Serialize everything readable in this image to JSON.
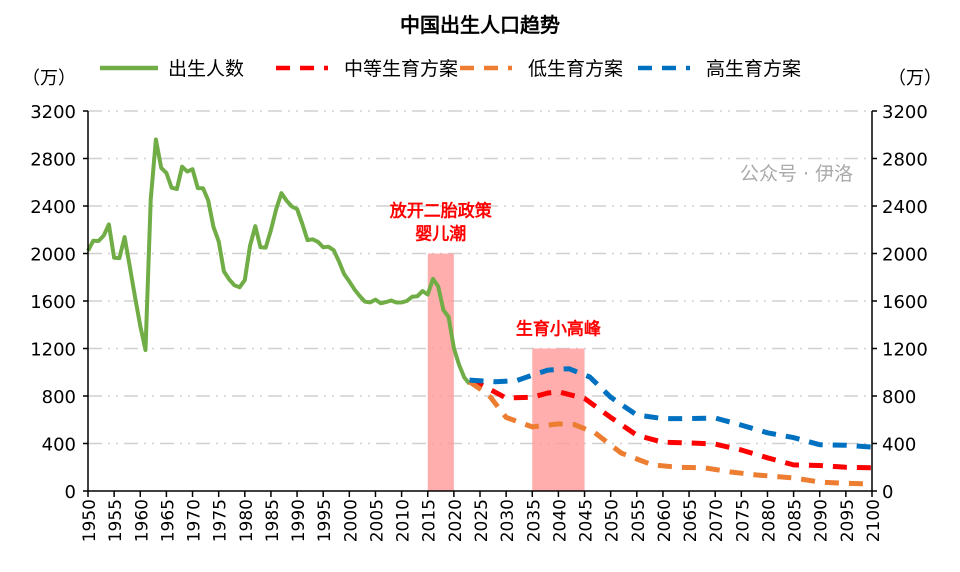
{
  "chart_data": {
    "type": "line",
    "title": "中国出生人口趋势",
    "ylabel_left": "（万）",
    "ylabel_right": "（万）",
    "ylim": [
      0,
      3200
    ],
    "yticks": [
      0,
      400,
      800,
      1200,
      1600,
      2000,
      2400,
      2800,
      3200
    ],
    "xlim": [
      1950,
      2100
    ],
    "xticks": [
      1950,
      1955,
      1960,
      1965,
      1970,
      1975,
      1980,
      1985,
      1990,
      1995,
      2000,
      2005,
      2010,
      2015,
      2020,
      2025,
      2030,
      2035,
      2040,
      2045,
      2050,
      2055,
      2060,
      2065,
      2070,
      2075,
      2080,
      2085,
      2090,
      2095,
      2100
    ],
    "grid": true,
    "legend_position": "top",
    "series": [
      {
        "name": "出生人数",
        "style": "solid",
        "color": "#70ad47",
        "x": [
          1950,
          1951,
          1952,
          1953,
          1954,
          1955,
          1956,
          1957,
          1958,
          1959,
          1960,
          1961,
          1962,
          1963,
          1964,
          1965,
          1966,
          1967,
          1968,
          1969,
          1970,
          1971,
          1972,
          1973,
          1974,
          1975,
          1976,
          1977,
          1978,
          1979,
          1980,
          1981,
          1982,
          1983,
          1984,
          1985,
          1986,
          1987,
          1988,
          1989,
          1990,
          1991,
          1992,
          1993,
          1994,
          1995,
          1996,
          1997,
          1998,
          1999,
          2000,
          2001,
          2002,
          2003,
          2004,
          2005,
          2006,
          2007,
          2008,
          2009,
          2010,
          2011,
          2012,
          2013,
          2014,
          2015,
          2016,
          2017,
          2018,
          2019,
          2020,
          2021,
          2022,
          2023
        ],
        "y": [
          2023,
          2107,
          2105,
          2151,
          2245,
          1965,
          1961,
          2138,
          1889,
          1635,
          1389,
          1187,
          2451,
          2960,
          2721,
          2679,
          2554,
          2543,
          2731,
          2690,
          2710,
          2551,
          2550,
          2447,
          2226,
          2102,
          1849,
          1783,
          1733,
          1715,
          1776,
          2064,
          2230,
          2052,
          2050,
          2196,
          2374,
          2508,
          2445,
          2396,
          2374,
          2250,
          2113,
          2120,
          2098,
          2052,
          2057,
          2028,
          1934,
          1827,
          1765,
          1696,
          1641,
          1594,
          1588,
          1612,
          1581,
          1591,
          1604,
          1587,
          1588,
          1600,
          1635,
          1640,
          1683,
          1655,
          1786,
          1723,
          1523,
          1465,
          1202,
          1062,
          956,
          902
        ]
      },
      {
        "name": "中等生育方案",
        "style": "dashed",
        "color": "#ff0000",
        "x": [
          2023,
          2025,
          2030,
          2035,
          2038,
          2040,
          2045,
          2050,
          2055,
          2060,
          2065,
          2070,
          2075,
          2080,
          2085,
          2090,
          2095,
          2100
        ],
        "y": [
          920,
          900,
          783,
          790,
          825,
          835,
          780,
          620,
          470,
          410,
          405,
          395,
          345,
          280,
          220,
          215,
          200,
          195
        ]
      },
      {
        "name": "低生育方案",
        "style": "dashed",
        "color": "#ed7d31",
        "x": [
          2023,
          2025,
          2027,
          2030,
          2035,
          2040,
          2043,
          2047,
          2052,
          2058,
          2063,
          2068,
          2073,
          2078,
          2085,
          2090,
          2095,
          2100
        ],
        "y": [
          920,
          860,
          790,
          620,
          540,
          565,
          560,
          490,
          320,
          220,
          200,
          195,
          160,
          135,
          110,
          75,
          65,
          60
        ]
      },
      {
        "name": "高生育方案",
        "style": "dashed",
        "color": "#0070c0",
        "x": [
          2023,
          2028,
          2032,
          2035,
          2038,
          2042,
          2046,
          2050,
          2055,
          2060,
          2065,
          2070,
          2075,
          2080,
          2085,
          2090,
          2095,
          2100
        ],
        "y": [
          934,
          920,
          930,
          976,
          1018,
          1030,
          960,
          790,
          640,
          610,
          610,
          615,
          555,
          490,
          450,
          390,
          385,
          370
        ]
      }
    ],
    "shaded_regions": [
      {
        "x": [
          2015,
          2020
        ],
        "y_top": 2000,
        "color": "#ff9999",
        "label_lines": [
          "放开二胎政策",
          "婴儿潮"
        ]
      },
      {
        "x": [
          2035,
          2045
        ],
        "y_top": 1200,
        "color": "#ff9999",
        "label_lines": [
          "生育小高峰"
        ]
      }
    ]
  },
  "watermark": "公众号 · 伊洛"
}
